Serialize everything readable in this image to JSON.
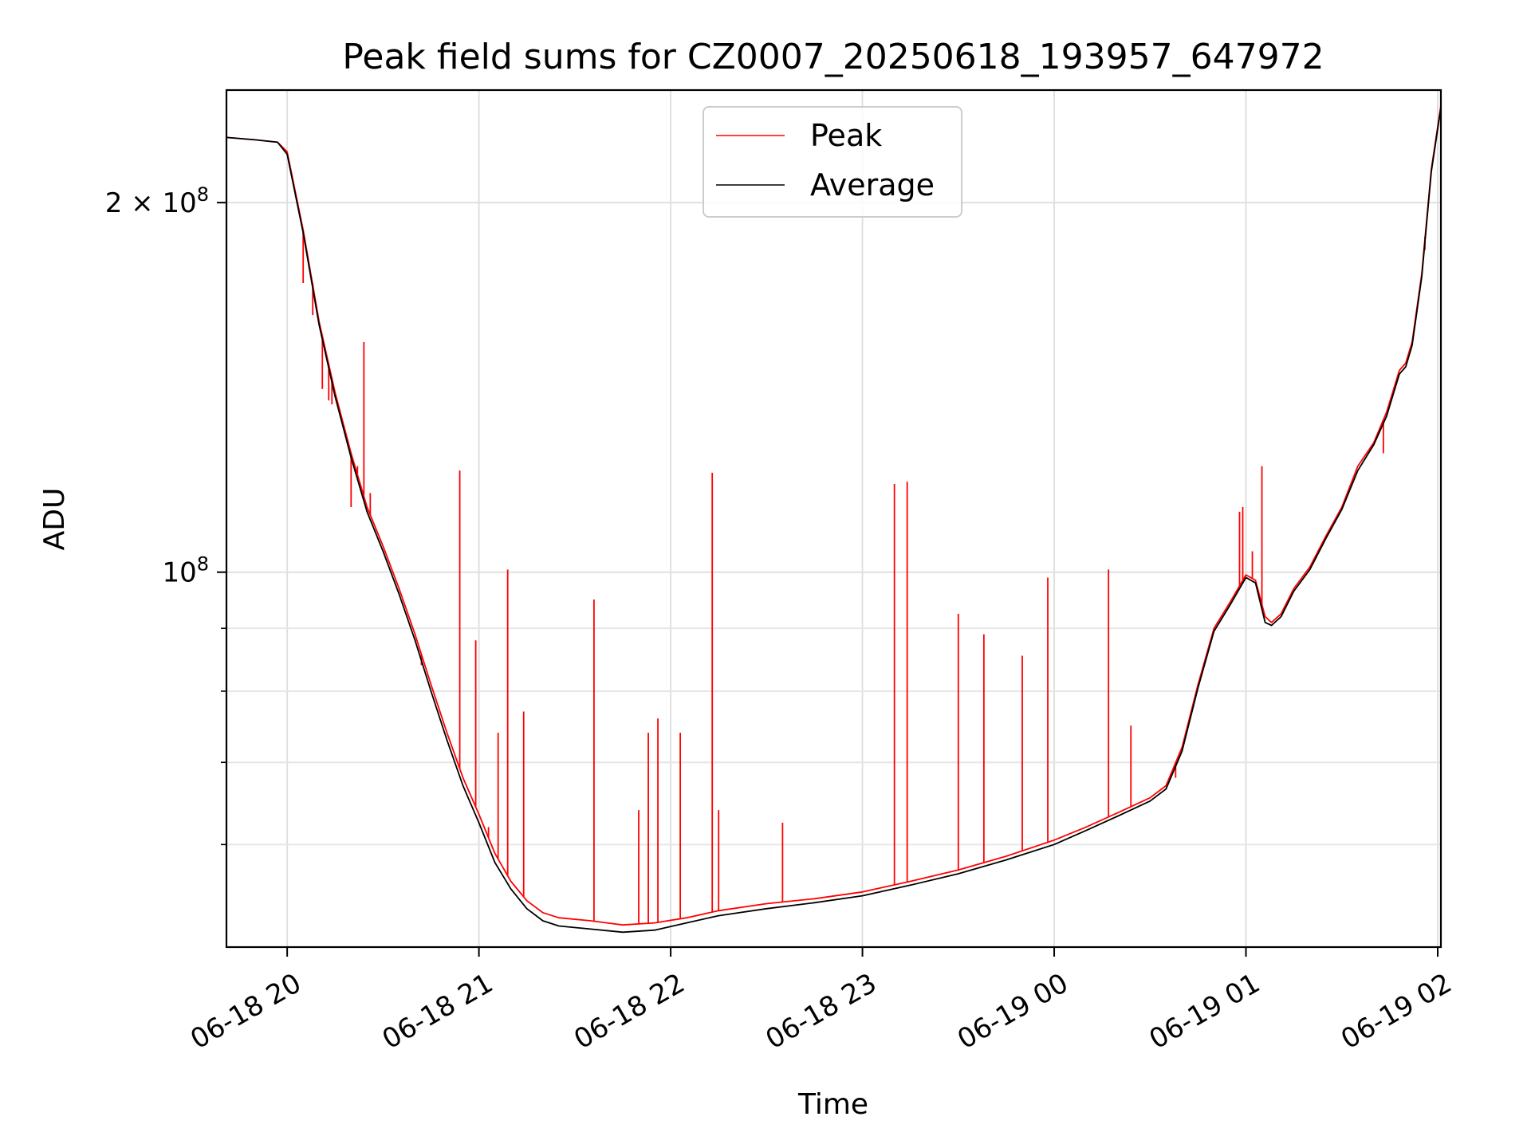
{
  "chart_data": {
    "type": "line",
    "title": "Peak field sums for CZ0007_20250618_193957_647972",
    "xlabel": "Time",
    "ylabel": "ADU",
    "yscale": "log",
    "ylim": [
      49500000,
      247000000
    ],
    "xlim": [
      "06-18 19:41",
      "06-19 02:01"
    ],
    "grid": true,
    "legend_position": "upper center",
    "x_ticks": [
      "06-18 20",
      "06-18 21",
      "06-18 22",
      "06-18 23",
      "06-19 00",
      "06-19 01",
      "06-19 02"
    ],
    "y_ticks": [
      {
        "value": 100000000,
        "label_base": "10",
        "label_exp": "8"
      },
      {
        "value": 200000000,
        "label_base": "2 × 10",
        "label_exp": "8"
      }
    ],
    "y_minor_ticks": [
      60000000,
      70000000,
      80000000,
      90000000
    ],
    "series": [
      {
        "name": "Peak",
        "color": "#ff0000",
        "points": [
          [
            "06-18 19:41",
            226000000
          ],
          [
            "06-18 19:50",
            225000000
          ],
          [
            "06-18 19:57",
            224000000
          ],
          [
            "06-18 20:00",
            220000000
          ],
          [
            "06-18 20:05",
            190000000
          ],
          [
            "06-18 20:10",
            160000000
          ],
          [
            "06-18 20:15",
            140000000
          ],
          [
            "06-18 20:20",
            125000000
          ],
          [
            "06-18 20:25",
            113000000
          ],
          [
            "06-18 20:30",
            105000000
          ],
          [
            "06-18 20:35",
            97000000
          ],
          [
            "06-18 20:40",
            89000000
          ],
          [
            "06-18 20:45",
            81000000
          ],
          [
            "06-18 20:50",
            74000000
          ],
          [
            "06-18 20:55",
            68000000
          ],
          [
            "06-18 21:00",
            63500000
          ],
          [
            "06-18 21:05",
            59000000
          ],
          [
            "06-18 21:10",
            56000000
          ],
          [
            "06-18 21:15",
            54000000
          ],
          [
            "06-18 21:20",
            52800000
          ],
          [
            "06-18 21:25",
            52300000
          ],
          [
            "06-18 21:35",
            52000000
          ],
          [
            "06-18 21:45",
            51600000
          ],
          [
            "06-18 21:55",
            51800000
          ],
          [
            "06-18 22:05",
            52300000
          ],
          [
            "06-18 22:15",
            53000000
          ],
          [
            "06-18 22:30",
            53700000
          ],
          [
            "06-18 22:45",
            54200000
          ],
          [
            "06-18 23:00",
            54900000
          ],
          [
            "06-18 23:15",
            56000000
          ],
          [
            "06-18 23:30",
            57200000
          ],
          [
            "06-18 23:45",
            58700000
          ],
          [
            "06-19 00:00",
            60500000
          ],
          [
            "06-19 00:10",
            62000000
          ],
          [
            "06-19 00:20",
            63700000
          ],
          [
            "06-19 00:30",
            65500000
          ],
          [
            "06-19 00:35",
            67000000
          ],
          [
            "06-19 00:40",
            72000000
          ],
          [
            "06-19 00:45",
            81000000
          ],
          [
            "06-19 00:50",
            90000000
          ],
          [
            "06-19 00:55",
            94500000
          ],
          [
            "06-19 01:00",
            99500000
          ],
          [
            "06-19 01:03",
            98500000
          ],
          [
            "06-19 01:06",
            92000000
          ],
          [
            "06-19 01:08",
            91000000
          ],
          [
            "06-19 01:11",
            92500000
          ],
          [
            "06-19 01:15",
            97000000
          ],
          [
            "06-19 01:20",
            101000000
          ],
          [
            "06-19 01:25",
            107000000
          ],
          [
            "06-19 01:30",
            113000000
          ],
          [
            "06-19 01:35",
            122000000
          ],
          [
            "06-19 01:40",
            127500000
          ],
          [
            "06-19 01:44",
            135000000
          ],
          [
            "06-19 01:48",
            146000000
          ],
          [
            "06-19 01:50",
            148000000
          ],
          [
            "06-19 01:52",
            154000000
          ],
          [
            "06-19 01:55",
            175000000
          ],
          [
            "06-19 01:58",
            213000000
          ],
          [
            "06-19 02:01",
            240000000
          ]
        ],
        "spikes": [
          [
            "06-18 20:05",
            172000000
          ],
          [
            "06-18 20:08",
            162000000
          ],
          [
            "06-18 20:11",
            141000000
          ],
          [
            "06-18 20:13",
            138000000
          ],
          [
            "06-18 20:14",
            137000000
          ],
          [
            "06-18 20:20",
            113000000
          ],
          [
            "06-18 20:22",
            122000000
          ],
          [
            "06-18 20:24",
            154000000
          ],
          [
            "06-18 20:26",
            116000000
          ],
          [
            "06-18 20:42",
            84000000
          ],
          [
            "06-18 20:54",
            121000000
          ],
          [
            "06-18 20:59",
            88000000
          ],
          [
            "06-18 21:03",
            62000000
          ],
          [
            "06-18 21:06",
            74000000
          ],
          [
            "06-18 21:09",
            100500000
          ],
          [
            "06-18 21:14",
            77000000
          ],
          [
            "06-18 21:36",
            95000000
          ],
          [
            "06-18 21:50",
            64000000
          ],
          [
            "06-18 21:53",
            74000000
          ],
          [
            "06-18 21:56",
            76000000
          ],
          [
            "06-18 22:03",
            74000000
          ],
          [
            "06-18 22:13",
            120500000
          ],
          [
            "06-18 22:15",
            64000000
          ],
          [
            "06-18 22:35",
            62500000
          ],
          [
            "06-18 23:10",
            118000000
          ],
          [
            "06-18 23:14",
            118500000
          ],
          [
            "06-18 23:30",
            92500000
          ],
          [
            "06-18 23:38",
            89000000
          ],
          [
            "06-18 23:50",
            85500000
          ],
          [
            "06-18 23:58",
            99000000
          ],
          [
            "06-19 00:17",
            100500000
          ],
          [
            "06-19 00:24",
            75000000
          ],
          [
            "06-19 00:38",
            68000000
          ],
          [
            "06-19 00:58",
            112000000
          ],
          [
            "06-19 00:59",
            113000000
          ],
          [
            "06-19 01:02",
            104000000
          ],
          [
            "06-19 01:05",
            122000000
          ],
          [
            "06-19 01:43",
            125000000
          ],
          [
            "06-19 01:56",
            183000000
          ]
        ]
      },
      {
        "name": "Average",
        "color": "#000000",
        "points": [
          [
            "06-18 19:41",
            226000000
          ],
          [
            "06-18 19:50",
            225000000
          ],
          [
            "06-18 19:57",
            224000000
          ],
          [
            "06-18 20:00",
            219000000
          ],
          [
            "06-18 20:05",
            189000000
          ],
          [
            "06-18 20:10",
            159000000
          ],
          [
            "06-18 20:15",
            139000000
          ],
          [
            "06-18 20:20",
            124000000
          ],
          [
            "06-18 20:25",
            112000000
          ],
          [
            "06-18 20:30",
            104000000
          ],
          [
            "06-18 20:35",
            96000000
          ],
          [
            "06-18 20:40",
            88000000
          ],
          [
            "06-18 20:45",
            80000000
          ],
          [
            "06-18 20:50",
            73000000
          ],
          [
            "06-18 20:55",
            67000000
          ],
          [
            "06-18 21:00",
            62500000
          ],
          [
            "06-18 21:05",
            58000000
          ],
          [
            "06-18 21:10",
            55200000
          ],
          [
            "06-18 21:15",
            53200000
          ],
          [
            "06-18 21:20",
            52000000
          ],
          [
            "06-18 21:25",
            51500000
          ],
          [
            "06-18 21:35",
            51200000
          ],
          [
            "06-18 21:45",
            50900000
          ],
          [
            "06-18 21:55",
            51100000
          ],
          [
            "06-18 22:05",
            51800000
          ],
          [
            "06-18 22:15",
            52500000
          ],
          [
            "06-18 22:30",
            53200000
          ],
          [
            "06-18 22:45",
            53800000
          ],
          [
            "06-18 23:00",
            54500000
          ],
          [
            "06-18 23:15",
            55600000
          ],
          [
            "06-18 23:30",
            56800000
          ],
          [
            "06-18 23:45",
            58300000
          ],
          [
            "06-19 00:00",
            60000000
          ],
          [
            "06-19 00:10",
            61600000
          ],
          [
            "06-19 00:20",
            63300000
          ],
          [
            "06-19 00:30",
            65100000
          ],
          [
            "06-19 00:35",
            66600000
          ],
          [
            "06-19 00:40",
            71500000
          ],
          [
            "06-19 00:45",
            80500000
          ],
          [
            "06-19 00:50",
            89500000
          ],
          [
            "06-19 00:55",
            94000000
          ],
          [
            "06-19 01:00",
            99000000
          ],
          [
            "06-19 01:03",
            98000000
          ],
          [
            "06-19 01:06",
            91000000
          ],
          [
            "06-19 01:08",
            90500000
          ],
          [
            "06-19 01:11",
            92000000
          ],
          [
            "06-19 01:15",
            96500000
          ],
          [
            "06-19 01:20",
            100500000
          ],
          [
            "06-19 01:25",
            106500000
          ],
          [
            "06-19 01:30",
            112500000
          ],
          [
            "06-19 01:35",
            121000000
          ],
          [
            "06-19 01:40",
            127000000
          ],
          [
            "06-19 01:44",
            134000000
          ],
          [
            "06-19 01:48",
            145000000
          ],
          [
            "06-19 01:50",
            147000000
          ],
          [
            "06-19 01:52",
            153000000
          ],
          [
            "06-19 01:55",
            174000000
          ],
          [
            "06-19 01:58",
            212000000
          ],
          [
            "06-19 02:01",
            239000000
          ]
        ]
      }
    ]
  }
}
